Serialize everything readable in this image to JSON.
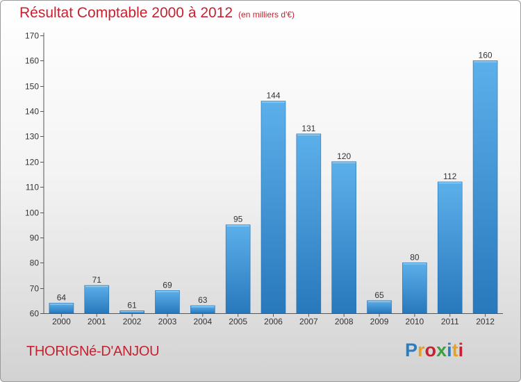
{
  "colors": {
    "accent": "#c8202e",
    "bar_light": "#5aaee8",
    "bar_dark": "#2a7dc0"
  },
  "chart_data": {
    "type": "bar",
    "title": "Résultat Comptable 2000 à 2012",
    "unit": "(en milliers d'€)",
    "categories": [
      "2000",
      "2001",
      "2002",
      "2003",
      "2004",
      "2005",
      "2006",
      "2007",
      "2008",
      "2009",
      "2010",
      "2011",
      "2012"
    ],
    "values": [
      64,
      71,
      61,
      69,
      63,
      95,
      144,
      131,
      120,
      65,
      80,
      112,
      160
    ],
    "ylim": [
      60,
      170
    ],
    "yticks": [
      60,
      70,
      80,
      90,
      100,
      110,
      120,
      130,
      140,
      150,
      160,
      170
    ],
    "xlabel": "",
    "ylabel": "",
    "grid": false
  },
  "footer": {
    "city": "THORIGNé-D'ANJOU",
    "brand": "Proxiti",
    "brand_letters": [
      {
        "ch": "P",
        "color": "#2a7dc0"
      },
      {
        "ch": "r",
        "color": "#e8a020"
      },
      {
        "ch": "o",
        "color": "#c8202e"
      },
      {
        "ch": "x",
        "color": "#3aa040"
      },
      {
        "ch": "i",
        "color": "#2a7dc0"
      },
      {
        "ch": "t",
        "color": "#e8a020"
      },
      {
        "ch": "i",
        "color": "#c8202e"
      }
    ]
  }
}
